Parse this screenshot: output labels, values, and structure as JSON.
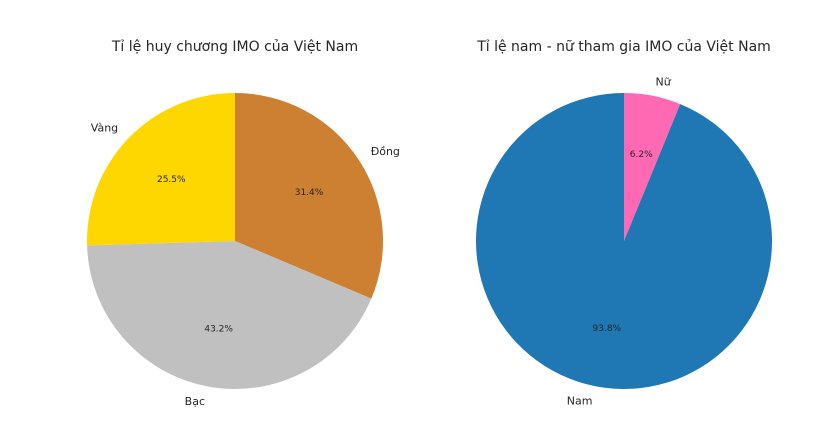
{
  "chart_data": [
    {
      "type": "pie",
      "title": "Tỉ lệ huy chương IMO của Việt Nam",
      "labels": [
        "Đồng",
        "Bạc",
        "Vàng"
      ],
      "values": [
        31.4,
        43.2,
        25.5
      ],
      "percent_labels": [
        "31.4%",
        "43.2%",
        "25.5%"
      ],
      "colors": [
        "#CD7F32",
        "#C0C0C0",
        "#FFD700"
      ],
      "start_angle": 90,
      "direction": "clockwise"
    },
    {
      "type": "pie",
      "title": "Tỉ lệ nam - nữ tham gia IMO của Việt Nam",
      "labels": [
        "Nữ",
        "Nam"
      ],
      "values": [
        6.2,
        93.8
      ],
      "percent_labels": [
        "6.2%",
        "93.8%"
      ],
      "colors": [
        "#FF69B4",
        "#1F77B4"
      ],
      "start_angle": 90,
      "direction": "clockwise"
    }
  ]
}
